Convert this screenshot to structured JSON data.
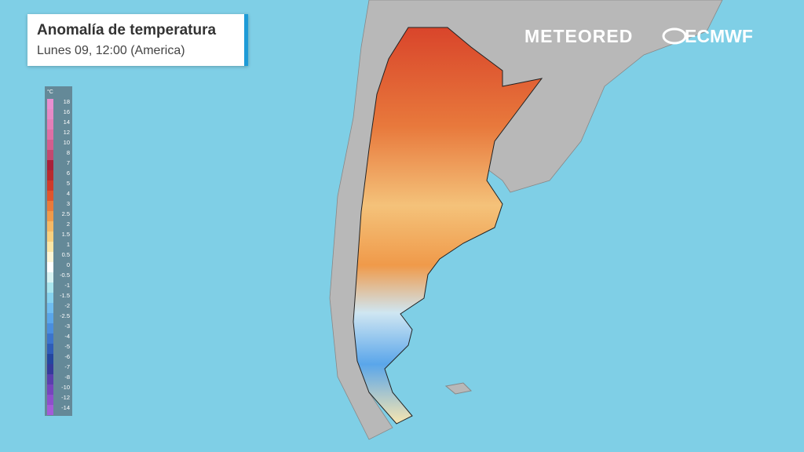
{
  "header": {
    "title": "Anomalía de temperatura",
    "subtitle": "Lunes 09, 12:00 (America)"
  },
  "legend": {
    "unit": "°C",
    "labels": [
      18,
      16,
      14,
      12,
      10,
      8,
      7,
      6,
      5,
      4,
      3,
      2.5,
      2,
      1.5,
      1,
      0.5,
      0,
      -0.5,
      -1,
      -1.5,
      -2,
      -2.5,
      -3,
      -4,
      -5,
      -6,
      -7,
      -8,
      -10,
      -12,
      -14
    ],
    "colors": [
      "#e88fd0",
      "#e78ac6",
      "#e47fb8",
      "#df6fa5",
      "#d45e8e",
      "#c4496f",
      "#a8203a",
      "#b82a2e",
      "#cf3a2a",
      "#e0552d",
      "#ea7a3a",
      "#f09a4a",
      "#f5b865",
      "#f8d07f",
      "#fbe6a6",
      "#fdf5d6",
      "#ffffff",
      "#d8f3f3",
      "#a9e6ee",
      "#86d3ef",
      "#6fbdf0",
      "#5aa6ea",
      "#4a8ede",
      "#3c74cc",
      "#2f5db8",
      "#2446a0",
      "#353a9c",
      "#5a3fae",
      "#7645bd",
      "#8e4fcc",
      "#a45cd8"
    ]
  },
  "logos": {
    "meteored": "METEORED",
    "ecmwf": "ECMWF"
  }
}
